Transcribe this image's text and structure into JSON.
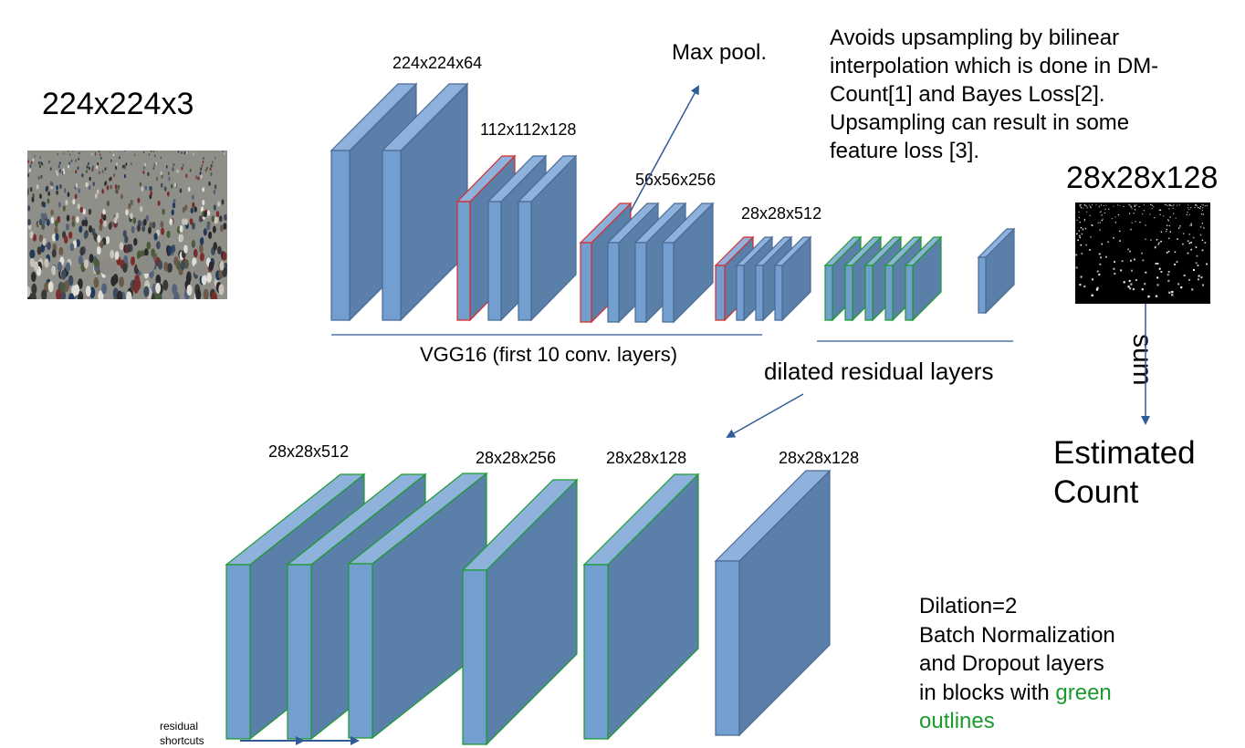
{
  "input": {
    "dims": "224x224x3",
    "image": "crowd photograph"
  },
  "encoder": {
    "dims": [
      "224x224x64",
      "112x112x128",
      "56x56x256",
      "28x28x512"
    ],
    "caption": "VGG16 (first 10 conv. layers)",
    "maxpool_label": "Max pool."
  },
  "note": {
    "lines": [
      "Avoids upsampling by bilinear",
      "interpolation which is done in DM-",
      "Count[1] and Bayes Loss[2].",
      "Upsampling can result in some",
      "feature loss [3]."
    ]
  },
  "output": {
    "dims": "28x28x128",
    "image": "density map",
    "sum_label": "sum",
    "result_line1": "Estimated",
    "result_line2": "Count"
  },
  "residual": {
    "caption": "dilated residual layers",
    "dims": [
      "28x28x512",
      "28x28x256",
      "28x28x128",
      "28x28x128"
    ],
    "shortcut_line1": "residual",
    "shortcut_line2": "shortcuts"
  },
  "legend": {
    "line1": "Dilation=2",
    "line2": "Batch Normalization",
    "line3": "and Dropout layers",
    "line4_prefix": "in blocks with ",
    "line4_green": "green",
    "line5_green": "outlines"
  },
  "colors": {
    "front": "#729fcf",
    "side": "#5a7fa8",
    "top": "#8fb2dc",
    "default_outline": "#4a6a94",
    "maxpool_outline": "#d62b2b",
    "residual_outline": "#1a9b2e",
    "arrow": "#2f5b96",
    "legend_green": "#1a9b2e"
  }
}
